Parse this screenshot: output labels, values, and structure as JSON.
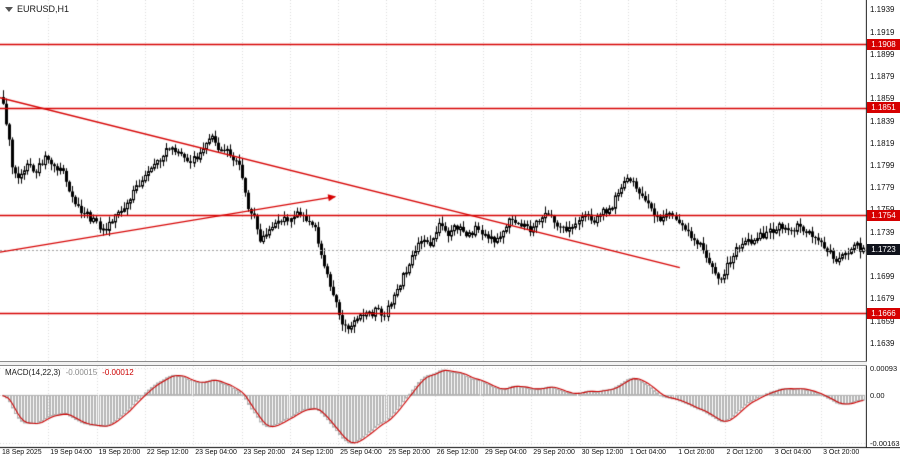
{
  "header": {
    "symbol_label": "EURUSD,H1"
  },
  "colors": {
    "background": "#ffffff",
    "grid": "#dcdcdc",
    "candle": "#000000",
    "candle_up_fill": "#ffffff",
    "candle_down_fill": "#000000",
    "level_line": "#d60000",
    "trend_line": "#d60000",
    "badge_bg": "#d60000",
    "badge_text": "#ffffff",
    "current_badge_bg": "#10131c",
    "bid_line": "#a0a0a0",
    "macd_bar": "#b4b4b4",
    "macd_signal": "#cc0000",
    "axis_text": "#111111",
    "separator": "#8c8c8c",
    "frame": "#000000"
  },
  "chart_data": {
    "type": "candlestick",
    "title": "EURUSD,H1 candlestick chart with MACD(14,22,3)",
    "x_labels": [
      "18 Sep 2025",
      "19 Sep 04:00",
      "19 Sep 20:00",
      "22 Sep 12:00",
      "23 Sep 04:00",
      "23 Sep 20:00",
      "24 Sep 12:00",
      "25 Sep 04:00",
      "25 Sep 20:00",
      "26 Sep 12:00",
      "29 Sep 04:00",
      "29 Sep 20:00",
      "30 Sep 12:00",
      "1 Oct 04:00",
      "1 Oct 20:00",
      "2 Oct 12:00",
      "3 Oct 04:00",
      "3 Oct 20:00"
    ],
    "ylim": [
      1.1623,
      1.1948
    ],
    "candle_count": 285,
    "price_waypoints": [
      [
        0,
        1.1852
      ],
      [
        1,
        1.1838
      ],
      [
        3,
        1.18
      ],
      [
        5,
        1.1789
      ],
      [
        8,
        1.1801
      ],
      [
        11,
        1.1794
      ],
      [
        14,
        1.1806
      ],
      [
        17,
        1.18
      ],
      [
        20,
        1.1791
      ],
      [
        23,
        1.1771
      ],
      [
        26,
        1.1759
      ],
      [
        30,
        1.1749
      ],
      [
        33,
        1.1742
      ],
      [
        36,
        1.1748
      ],
      [
        40,
        1.1761
      ],
      [
        44,
        1.1779
      ],
      [
        47,
        1.1791
      ],
      [
        51,
        1.1801
      ],
      [
        55,
        1.1815
      ],
      [
        58,
        1.1809
      ],
      [
        61,
        1.18
      ],
      [
        64,
        1.1808
      ],
      [
        67,
        1.1819
      ],
      [
        69,
        1.1822
      ],
      [
        71,
        1.1814
      ],
      [
        74,
        1.1812
      ],
      [
        77,
        1.1803
      ],
      [
        79,
        1.1791
      ],
      [
        81,
        1.1762
      ],
      [
        83,
        1.175
      ],
      [
        85,
        1.1733
      ],
      [
        88,
        1.1741
      ],
      [
        91,
        1.1746
      ],
      [
        94,
        1.1751
      ],
      [
        97,
        1.1757
      ],
      [
        100,
        1.1751
      ],
      [
        103,
        1.1744
      ],
      [
        105,
        1.1719
      ],
      [
        107,
        1.1701
      ],
      [
        110,
        1.1673
      ],
      [
        112,
        1.1657
      ],
      [
        114,
        1.165
      ],
      [
        117,
        1.1661
      ],
      [
        120,
        1.1664
      ],
      [
        123,
        1.1668
      ],
      [
        126,
        1.1664
      ],
      [
        129,
        1.1681
      ],
      [
        132,
        1.1699
      ],
      [
        135,
        1.1716
      ],
      [
        138,
        1.1734
      ],
      [
        141,
        1.1728
      ],
      [
        144,
        1.1745
      ],
      [
        147,
        1.1738
      ],
      [
        150,
        1.1744
      ],
      [
        153,
        1.1735
      ],
      [
        156,
        1.1741
      ],
      [
        159,
        1.1738
      ],
      [
        162,
        1.1731
      ],
      [
        165,
        1.1741
      ],
      [
        168,
        1.1751
      ],
      [
        171,
        1.1744
      ],
      [
        174,
        1.1741
      ],
      [
        177,
        1.1751
      ],
      [
        180,
        1.1758
      ],
      [
        183,
        1.1747
      ],
      [
        186,
        1.1741
      ],
      [
        189,
        1.1749
      ],
      [
        192,
        1.1754
      ],
      [
        195,
        1.1751
      ],
      [
        198,
        1.1757
      ],
      [
        201,
        1.1763
      ],
      [
        204,
        1.1779
      ],
      [
        206,
        1.1789
      ],
      [
        208,
        1.1783
      ],
      [
        211,
        1.177
      ],
      [
        214,
        1.1759
      ],
      [
        217,
        1.1747
      ],
      [
        220,
        1.1755
      ],
      [
        223,
        1.1749
      ],
      [
        226,
        1.1739
      ],
      [
        229,
        1.1731
      ],
      [
        232,
        1.1719
      ],
      [
        235,
        1.1703
      ],
      [
        237,
        1.1697
      ],
      [
        239,
        1.1709
      ],
      [
        242,
        1.1722
      ],
      [
        245,
        1.1728
      ],
      [
        248,
        1.1733
      ],
      [
        251,
        1.1737
      ],
      [
        254,
        1.1741
      ],
      [
        257,
        1.1745
      ],
      [
        260,
        1.1741
      ],
      [
        263,
        1.1745
      ],
      [
        266,
        1.1739
      ],
      [
        269,
        1.1733
      ],
      [
        272,
        1.1723
      ],
      [
        275,
        1.1715
      ],
      [
        278,
        1.1719
      ],
      [
        281,
        1.1727
      ],
      [
        284,
        1.1723
      ]
    ],
    "price_ticks": [
      "1.1939",
      "1.1919",
      "1.1899",
      "1.1879",
      "1.1859",
      "1.1839",
      "1.1819",
      "1.1799",
      "1.1779",
      "1.1759",
      "1.1739",
      "1.1699",
      "1.1679",
      "1.1659",
      "1.1639"
    ],
    "levels": [
      {
        "value": 1.1908,
        "label": "1.1908"
      },
      {
        "value": 1.1851,
        "label": "1.1851"
      },
      {
        "value": 1.1754,
        "label": "1.1754"
      },
      {
        "value": 1.1666,
        "label": "1.1666"
      }
    ],
    "current_price": {
      "value": 1.1723,
      "label": "1.1723"
    },
    "trendlines": [
      {
        "x1": 0.0,
        "p1": 1.186,
        "x2": 0.785,
        "p2": 1.1707,
        "arrow": false
      },
      {
        "x1": 0.0,
        "p1": 1.1721,
        "x2": 0.387,
        "p2": 1.1771,
        "arrow": true
      }
    ],
    "macd": {
      "label": "MACD(14,22,3)",
      "value_main": "-0.00015",
      "value_signal": "-0.00012",
      "scale": [
        {
          "label": "0.00093",
          "value": 0.00093
        },
        {
          "label": "0.00",
          "value": 0
        },
        {
          "label": "-0.00163",
          "value": -0.00163
        }
      ]
    }
  }
}
